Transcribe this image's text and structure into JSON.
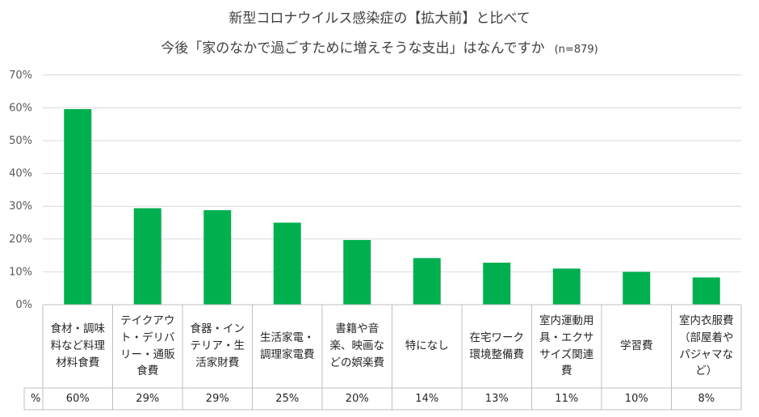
{
  "title": {
    "line1": "新型コロナウイルス感染症の【拡大前】と比べて",
    "line2": "今後「家のなかで過ごすために増えそうな支出」はなんですか",
    "n": "(n=879)"
  },
  "colors": {
    "bar": "#00b04f",
    "grid": "#d9d9d9",
    "border": "#bfbfbf"
  },
  "table": {
    "row_label": "%"
  },
  "chart_data": {
    "type": "bar",
    "title": "新型コロナウイルス感染症の【拡大前】と比べて 今後「家のなかで過ごすために増えそうな支出」はなんですか (n=879)",
    "categories": [
      [
        "食材・調味",
        "料など料理",
        "材料食費"
      ],
      [
        "テイクアウ",
        "ト・デリバ",
        "リー・通販",
        "食費"
      ],
      [
        "食器・イン",
        "テリア・生",
        "活家財費"
      ],
      [
        "生活家電・",
        "調理家電費"
      ],
      [
        "書籍や音",
        "楽、映画な",
        "どの娯楽費"
      ],
      [
        "特になし"
      ],
      [
        "在宅ワーク",
        "環境整備費"
      ],
      [
        "室内運動用",
        "具・エクサ",
        "サイズ関連",
        "費"
      ],
      [
        "学習費"
      ],
      [
        "室内衣服費",
        "（部屋着や",
        "パジャマな",
        "ど）"
      ]
    ],
    "values": [
      59.6,
      29.4,
      28.8,
      25.0,
      19.7,
      14.2,
      12.8,
      11.0,
      10.0,
      8.3
    ],
    "value_labels": [
      "60%",
      "29%",
      "29%",
      "25%",
      "20%",
      "14%",
      "13%",
      "11%",
      "10%",
      "8%"
    ],
    "y_ticks": [
      "0%",
      "10%",
      "20%",
      "30%",
      "40%",
      "50%",
      "60%",
      "70%"
    ],
    "ylim": [
      0,
      70
    ],
    "grid": true,
    "legend": "none"
  }
}
